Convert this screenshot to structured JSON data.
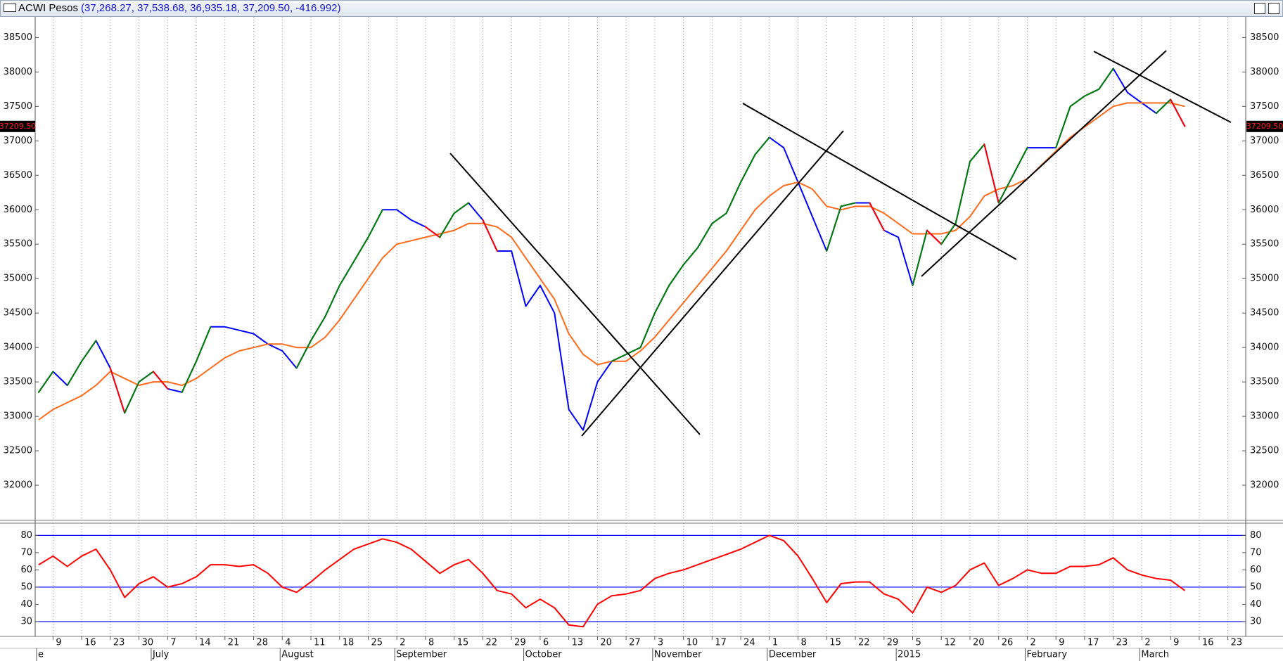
{
  "chart_data": [
    {
      "type": "line",
      "title": "ACWI Pesos",
      "subtitle": "(37,268.27, 37,538.68, 36,935.18, 37,209.50, -416.992)",
      "categories": [
        null,
        "9",
        null,
        "16",
        null,
        "23",
        null,
        "30",
        null,
        "7",
        null,
        "14",
        null,
        "21",
        null,
        "28",
        null,
        "4",
        null,
        "11",
        null,
        "18",
        null,
        "25",
        null,
        "2",
        null,
        "8",
        null,
        "15",
        null,
        "22",
        null,
        "29",
        null,
        "6",
        null,
        "13",
        null,
        "20",
        null,
        "27",
        null,
        "3",
        null,
        "10",
        null,
        "17",
        null,
        "24",
        null,
        "1",
        null,
        "8",
        null,
        "15",
        null,
        "22",
        null,
        "29",
        null,
        "5",
        null,
        "12",
        null,
        "20",
        null,
        "26",
        null,
        "2",
        null,
        "9",
        null,
        "17",
        null,
        "23",
        null,
        "2",
        null,
        "9",
        null,
        "16",
        null,
        "23",
        null
      ],
      "months": [
        "e",
        null,
        null,
        null,
        null,
        null,
        null,
        null,
        "July",
        null,
        null,
        null,
        null,
        null,
        null,
        null,
        null,
        "August",
        null,
        null,
        null,
        null,
        null,
        null,
        null,
        "September",
        null,
        null,
        null,
        null,
        null,
        null,
        null,
        null,
        "October",
        null,
        null,
        null,
        null,
        null,
        null,
        null,
        null,
        "November",
        null,
        null,
        null,
        null,
        null,
        null,
        null,
        "December",
        null,
        null,
        null,
        null,
        null,
        null,
        null,
        null,
        "2015",
        null,
        null,
        null,
        null,
        null,
        null,
        null,
        null,
        "February",
        null,
        null,
        null,
        null,
        null,
        null,
        null,
        "March",
        null,
        null,
        null,
        null,
        null,
        null,
        null
      ],
      "series": [
        {
          "color": "#0000ff",
          "up_color": "#008000",
          "down_color": "#ff0000",
          "values": [
            33350,
            33650,
            33450,
            33800,
            34100,
            33700,
            33050,
            33500,
            33650,
            33400,
            33350,
            33800,
            34300,
            34300,
            34250,
            34200,
            34050,
            33950,
            33700,
            34100,
            34450,
            34900,
            35250,
            35600,
            36000,
            36000,
            35850,
            35750,
            35600,
            35950,
            36100,
            35850,
            35400,
            35400,
            34600,
            34900,
            34500,
            33100,
            32800,
            33500,
            33800,
            33900,
            34000,
            34500,
            34900,
            35200,
            35450,
            35800,
            35950,
            36400,
            36800,
            37050,
            36900,
            36400,
            35900,
            35400,
            36050,
            36100,
            36100,
            35700,
            35600,
            34900,
            35700,
            35500,
            35800,
            36700,
            36950,
            36100,
            36500,
            36900,
            36900,
            36900,
            37500,
            37650,
            37750,
            38050,
            37700,
            37550,
            37400,
            37600,
            37210,
            null,
            null,
            null,
            null
          ]
        },
        {
          "color": "#ff6a1a",
          "values": [
            32950,
            33100,
            33200,
            33300,
            33450,
            33650,
            33550,
            33450,
            33500,
            33500,
            33450,
            33550,
            33700,
            33850,
            33950,
            34000,
            34050,
            34050,
            34000,
            34000,
            34150,
            34400,
            34700,
            35000,
            35300,
            35500,
            35550,
            35600,
            35650,
            35700,
            35800,
            35800,
            35750,
            35600,
            35300,
            35000,
            34700,
            34200,
            33900,
            33750,
            33800,
            33800,
            33950,
            34150,
            34400,
            34650,
            34900,
            35150,
            35400,
            35700,
            36000,
            36200,
            36350,
            36400,
            36300,
            36050,
            36000,
            36050,
            36050,
            35950,
            35800,
            35650,
            35650,
            35650,
            35700,
            35900,
            36200,
            36300,
            36350,
            36450,
            36650,
            36850,
            37050,
            37200,
            37350,
            37500,
            37550,
            37550,
            37550,
            37550,
            37500,
            null,
            null,
            null,
            null
          ]
        }
      ],
      "ylim": [
        31490,
        38800
      ],
      "yticks": [
        32000,
        32500,
        33000,
        33500,
        34000,
        34500,
        35000,
        35500,
        36000,
        36500,
        37000,
        37500,
        38000,
        38500
      ],
      "grid": true,
      "last_value": {
        "value": 37209.5,
        "label": "37209.50"
      }
    },
    {
      "type": "line",
      "series": [
        {
          "color": "#ff0000",
          "values": [
            63,
            68,
            62,
            68,
            72,
            60,
            44,
            52,
            56,
            50,
            52,
            56,
            63,
            63,
            62,
            63,
            58,
            50,
            47,
            53,
            60,
            66,
            72,
            75,
            78,
            76,
            72,
            65,
            58,
            63,
            66,
            58,
            48,
            46,
            38,
            43,
            38,
            28,
            27,
            40,
            45,
            46,
            48,
            55,
            58,
            60,
            63,
            66,
            69,
            72,
            76,
            80,
            77,
            68,
            55,
            41,
            52,
            53,
            53,
            46,
            43,
            35,
            50,
            47,
            51,
            60,
            64,
            51,
            55,
            60,
            58,
            58,
            62,
            62,
            63,
            67,
            60,
            57,
            55,
            54,
            48,
            null,
            null,
            null,
            null
          ]
        }
      ],
      "ylim": [
        21.4,
        87.1
      ],
      "yticks": [
        30,
        40,
        50,
        60,
        70,
        80
      ],
      "levels": [
        30,
        50,
        80
      ],
      "level_color": "#0000ff"
    }
  ]
}
